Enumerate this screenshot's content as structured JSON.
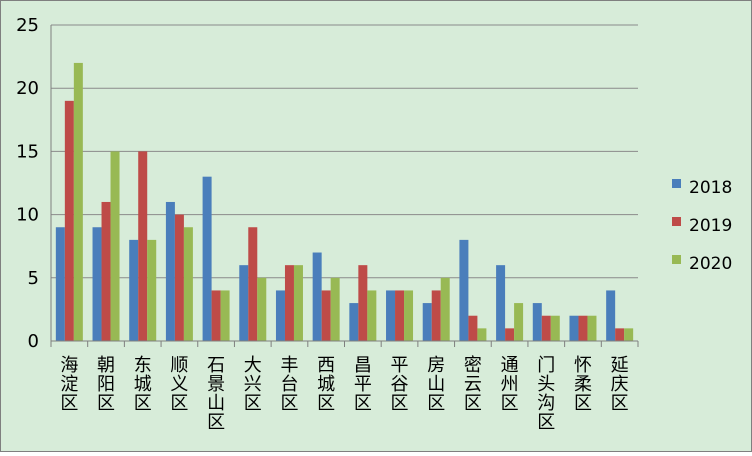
{
  "chart_data": {
    "type": "bar",
    "title": "",
    "xlabel": "",
    "ylabel": "",
    "ylim": [
      0,
      25
    ],
    "yticks": [
      0,
      5,
      10,
      15,
      20,
      25
    ],
    "grid": true,
    "legend_position": "right",
    "categories": [
      "海淀区",
      "朝阳区",
      "东城区",
      "顺义区",
      "石景山区",
      "大兴区",
      "丰台区",
      "西城区",
      "昌平区",
      "平谷区",
      "房山区",
      "密云区",
      "通州区",
      "门头沟区",
      "怀柔区",
      "延庆区"
    ],
    "series": [
      {
        "name": "2018",
        "color": "#4a7ebb",
        "values": [
          9,
          9,
          8,
          11,
          13,
          6,
          4,
          7,
          3,
          4,
          3,
          8,
          6,
          3,
          2,
          4
        ]
      },
      {
        "name": "2019",
        "color": "#be4b48",
        "values": [
          19,
          11,
          15,
          10,
          4,
          9,
          6,
          4,
          6,
          4,
          4,
          2,
          1,
          2,
          2,
          1
        ]
      },
      {
        "name": "2020",
        "color": "#98b954",
        "values": [
          22,
          15,
          8,
          9,
          4,
          5,
          6,
          5,
          4,
          4,
          5,
          1,
          3,
          2,
          2,
          1
        ]
      }
    ]
  }
}
